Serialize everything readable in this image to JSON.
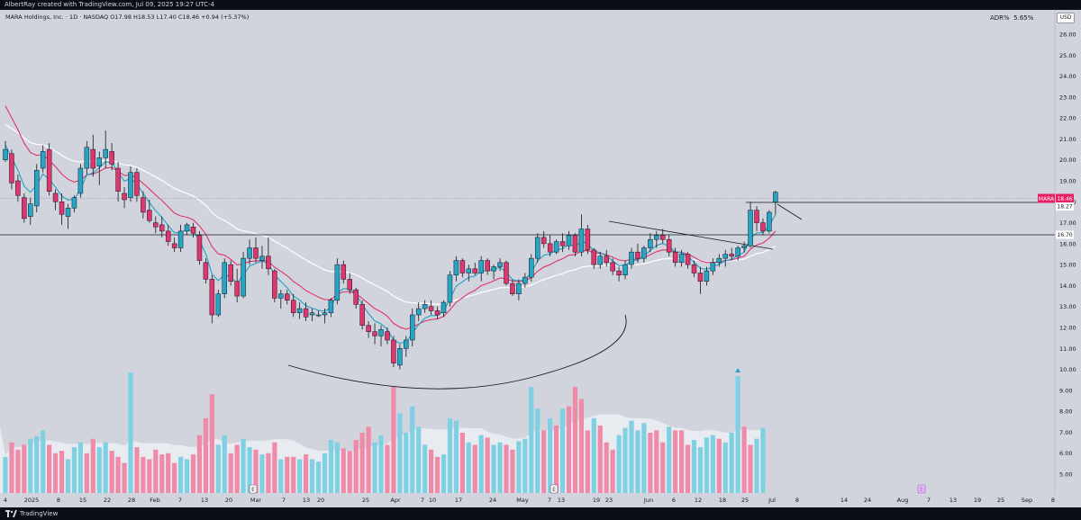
{
  "header": {
    "creator_line": "AlbertRay created with TradingView.com, Jul 09, 2025 19:27 UTC-4",
    "symbol_line": "MARA Holdings, Inc. · 1D · NASDAQ  O17.98  H18.53  L17.40  C18.46  +0.94 (+5.37%)",
    "adr_label": "ADR%",
    "adr_value": "5.65%",
    "currency": "USD"
  },
  "footer": {
    "brand": "TradingView"
  },
  "chart_data": {
    "type": "candlestick",
    "symbol": "MARA",
    "timeframe": "1D",
    "y_axis": {
      "range": [
        4.4,
        27.8
      ],
      "ticks": [
        "5.00",
        "6.00",
        "7.00",
        "8.00",
        "9.00",
        "10.00",
        "11.00",
        "12.00",
        "13.00",
        "14.00",
        "15.00",
        "16.00",
        "17.00",
        "18.00",
        "19.00",
        "20.00",
        "21.00",
        "22.00",
        "23.00",
        "24.00",
        "25.00",
        "26.00"
      ]
    },
    "x_axis": {
      "ticks": [
        "4",
        "2025",
        "8",
        "15",
        "22",
        "28",
        "Feb",
        "7",
        "13",
        "20",
        "Mar",
        "7",
        "13",
        "20",
        "25",
        "Apr",
        "7",
        "10",
        "17",
        "24",
        "May",
        "7",
        "13",
        "19",
        "23",
        "Jun",
        "6",
        "12",
        "18",
        "25",
        "Jul",
        "8",
        "14",
        "24",
        "Aug",
        "7",
        "13",
        "19",
        "25",
        "Sep",
        "8"
      ]
    },
    "price_labels": {
      "last": {
        "symbol": "MARA",
        "value": "18.46",
        "color": "#e91e63"
      },
      "level1": {
        "value": "18.27"
      },
      "level2": {
        "value": "16.70"
      }
    },
    "event_markers": [
      "E",
      "E",
      "E"
    ],
    "colors": {
      "up": "#26a6c4",
      "down": "#e0356f",
      "volume_up": "#7fd0e3",
      "volume_down": "#f08aa9",
      "ema_fast": "#1fa0c4",
      "ema_mid": "#e0356f",
      "ema_slow": "#ffffff"
    },
    "candles": [
      [
        20.0,
        20.9,
        19.9,
        20.5
      ],
      [
        20.3,
        20.5,
        18.6,
        18.9
      ],
      [
        19.0,
        19.3,
        18.0,
        18.3
      ],
      [
        18.2,
        18.4,
        17.0,
        17.2
      ],
      [
        17.3,
        18.2,
        16.9,
        17.9
      ],
      [
        17.8,
        19.8,
        17.5,
        19.5
      ],
      [
        19.6,
        20.7,
        19.4,
        20.4
      ],
      [
        20.5,
        20.8,
        18.3,
        18.5
      ],
      [
        18.4,
        18.6,
        17.6,
        18.0
      ],
      [
        18.0,
        18.4,
        16.9,
        17.4
      ],
      [
        17.3,
        17.9,
        16.7,
        17.7
      ],
      [
        17.7,
        18.3,
        17.5,
        18.2
      ],
      [
        18.4,
        19.8,
        18.2,
        19.6
      ],
      [
        19.6,
        20.9,
        19.3,
        20.6
      ],
      [
        20.5,
        21.2,
        19.2,
        19.6
      ],
      [
        19.7,
        20.4,
        18.8,
        20.1
      ],
      [
        20.1,
        21.4,
        19.6,
        20.5
      ],
      [
        20.4,
        20.8,
        19.5,
        19.8
      ],
      [
        19.6,
        19.9,
        18.0,
        18.5
      ],
      [
        18.4,
        18.7,
        17.7,
        18.1
      ],
      [
        18.2,
        19.7,
        18.0,
        19.4
      ],
      [
        19.4,
        19.6,
        18.0,
        18.3
      ],
      [
        18.2,
        18.5,
        17.2,
        17.5
      ],
      [
        17.6,
        18.1,
        17.0,
        17.1
      ],
      [
        17.0,
        17.3,
        16.5,
        16.8
      ],
      [
        16.9,
        17.3,
        16.3,
        16.6
      ],
      [
        16.6,
        16.9,
        15.9,
        16.1
      ],
      [
        16.0,
        16.3,
        15.6,
        15.8
      ],
      [
        15.8,
        16.9,
        15.6,
        16.6
      ],
      [
        16.6,
        17.0,
        16.4,
        16.9
      ],
      [
        16.8,
        17.0,
        16.3,
        16.5
      ],
      [
        16.4,
        16.6,
        15.0,
        15.2
      ],
      [
        15.1,
        15.3,
        14.1,
        14.3
      ],
      [
        14.3,
        14.5,
        12.2,
        12.6
      ],
      [
        12.6,
        13.8,
        12.5,
        13.6
      ],
      [
        13.6,
        15.3,
        13.4,
        15.1
      ],
      [
        15.0,
        15.2,
        14.0,
        14.2
      ],
      [
        14.2,
        14.8,
        13.2,
        13.5
      ],
      [
        13.5,
        15.6,
        13.4,
        15.3
      ],
      [
        15.3,
        16.2,
        15.0,
        15.8
      ],
      [
        15.8,
        16.3,
        15.1,
        15.3
      ],
      [
        15.2,
        15.9,
        14.8,
        15.4
      ],
      [
        15.4,
        16.3,
        14.5,
        14.8
      ],
      [
        14.7,
        14.8,
        13.2,
        13.4
      ],
      [
        13.4,
        13.8,
        12.9,
        13.6
      ],
      [
        13.6,
        13.8,
        13.1,
        13.3
      ],
      [
        13.3,
        13.6,
        12.5,
        12.7
      ],
      [
        12.7,
        13.2,
        12.4,
        12.9
      ],
      [
        12.9,
        13.2,
        12.3,
        12.5
      ],
      [
        12.6,
        12.9,
        12.3,
        12.7
      ],
      [
        12.6,
        12.8,
        12.5,
        12.6
      ],
      [
        12.6,
        12.9,
        12.2,
        12.7
      ],
      [
        12.7,
        13.4,
        12.5,
        13.3
      ],
      [
        13.3,
        15.3,
        13.1,
        15.0
      ],
      [
        15.0,
        15.2,
        14.1,
        14.3
      ],
      [
        14.3,
        14.6,
        13.6,
        13.8
      ],
      [
        13.8,
        13.9,
        12.9,
        13.1
      ],
      [
        13.1,
        13.3,
        11.9,
        12.1
      ],
      [
        12.1,
        12.3,
        11.5,
        11.8
      ],
      [
        11.8,
        12.2,
        11.2,
        11.6
      ],
      [
        11.6,
        12.1,
        11.1,
        11.9
      ],
      [
        11.8,
        12.0,
        11.2,
        11.4
      ],
      [
        11.4,
        11.6,
        10.1,
        10.3
      ],
      [
        10.2,
        11.2,
        10.0,
        11.0
      ],
      [
        11.0,
        11.6,
        10.6,
        11.4
      ],
      [
        11.4,
        12.9,
        11.1,
        12.6
      ],
      [
        12.6,
        13.2,
        12.3,
        12.9
      ],
      [
        12.9,
        13.3,
        12.7,
        13.1
      ],
      [
        13.0,
        13.3,
        12.6,
        12.8
      ],
      [
        12.8,
        13.0,
        12.4,
        12.6
      ],
      [
        12.7,
        13.3,
        12.5,
        13.2
      ],
      [
        13.2,
        14.7,
        13.0,
        14.5
      ],
      [
        14.5,
        15.4,
        14.2,
        15.2
      ],
      [
        15.2,
        15.3,
        14.4,
        14.6
      ],
      [
        14.6,
        15.0,
        14.2,
        14.8
      ],
      [
        14.8,
        15.1,
        14.5,
        14.6
      ],
      [
        14.6,
        15.4,
        14.2,
        15.2
      ],
      [
        15.2,
        15.3,
        14.5,
        14.7
      ],
      [
        14.7,
        15.0,
        14.3,
        14.9
      ],
      [
        14.9,
        15.3,
        14.7,
        15.1
      ],
      [
        15.1,
        15.2,
        14.0,
        14.1
      ],
      [
        14.1,
        14.3,
        13.5,
        13.6
      ],
      [
        13.6,
        14.3,
        13.3,
        14.1
      ],
      [
        14.1,
        14.6,
        13.9,
        14.4
      ],
      [
        14.4,
        15.5,
        14.2,
        15.3
      ],
      [
        15.3,
        16.5,
        15.1,
        16.3
      ],
      [
        16.3,
        16.6,
        15.8,
        16.0
      ],
      [
        16.0,
        16.4,
        15.4,
        15.6
      ],
      [
        15.6,
        16.2,
        15.5,
        16.1
      ],
      [
        16.1,
        16.5,
        15.6,
        15.9
      ],
      [
        15.9,
        16.6,
        15.7,
        16.4
      ],
      [
        16.4,
        16.5,
        15.4,
        15.6
      ],
      [
        15.6,
        17.4,
        15.4,
        16.7
      ],
      [
        16.7,
        16.9,
        15.5,
        15.7
      ],
      [
        15.7,
        15.8,
        14.8,
        15.0
      ],
      [
        15.0,
        15.6,
        14.8,
        15.4
      ],
      [
        15.4,
        15.7,
        14.9,
        15.1
      ],
      [
        15.1,
        15.3,
        14.5,
        14.7
      ],
      [
        14.7,
        14.9,
        14.2,
        14.5
      ],
      [
        14.5,
        15.2,
        14.3,
        15.0
      ],
      [
        15.0,
        15.8,
        14.8,
        15.6
      ],
      [
        15.6,
        16.0,
        15.1,
        15.3
      ],
      [
        15.3,
        15.9,
        15.1,
        15.8
      ],
      [
        15.8,
        16.5,
        15.6,
        16.2
      ],
      [
        16.2,
        16.6,
        15.8,
        16.4
      ],
      [
        16.4,
        16.7,
        16.0,
        16.2
      ],
      [
        16.2,
        16.4,
        15.4,
        15.6
      ],
      [
        15.6,
        15.8,
        14.9,
        15.1
      ],
      [
        15.1,
        15.7,
        14.9,
        15.5
      ],
      [
        15.5,
        15.6,
        14.8,
        15.0
      ],
      [
        15.0,
        15.2,
        14.4,
        14.6
      ],
      [
        14.6,
        14.9,
        13.6,
        14.2
      ],
      [
        14.2,
        14.9,
        14.0,
        14.7
      ],
      [
        14.7,
        15.3,
        14.5,
        15.1
      ],
      [
        15.1,
        15.5,
        14.9,
        15.3
      ],
      [
        15.3,
        15.7,
        14.9,
        15.5
      ],
      [
        15.5,
        15.8,
        15.2,
        15.4
      ],
      [
        15.4,
        15.9,
        15.2,
        15.8
      ],
      [
        15.8,
        16.1,
        15.6,
        15.9
      ],
      [
        15.9,
        18.0,
        15.8,
        17.6
      ],
      [
        17.6,
        17.8,
        16.6,
        17.0
      ],
      [
        17.0,
        17.2,
        16.4,
        16.6
      ],
      [
        16.6,
        17.6,
        16.5,
        17.5
      ],
      [
        17.98,
        18.53,
        17.4,
        18.46
      ]
    ],
    "volume_scale": [
      0,
      1
    ],
    "volumes": [
      [
        0.3,
        true
      ],
      [
        0.42,
        false
      ],
      [
        0.36,
        false
      ],
      [
        0.4,
        false
      ],
      [
        0.45,
        true
      ],
      [
        0.47,
        true
      ],
      [
        0.52,
        true
      ],
      [
        0.4,
        false
      ],
      [
        0.33,
        false
      ],
      [
        0.35,
        false
      ],
      [
        0.28,
        true
      ],
      [
        0.38,
        true
      ],
      [
        0.42,
        true
      ],
      [
        0.33,
        false
      ],
      [
        0.45,
        false
      ],
      [
        0.38,
        true
      ],
      [
        0.42,
        true
      ],
      [
        0.35,
        false
      ],
      [
        0.3,
        false
      ],
      [
        0.25,
        false
      ],
      [
        1.0,
        true
      ],
      [
        0.38,
        false
      ],
      [
        0.3,
        false
      ],
      [
        0.28,
        false
      ],
      [
        0.36,
        false
      ],
      [
        0.32,
        false
      ],
      [
        0.33,
        false
      ],
      [
        0.25,
        false
      ],
      [
        0.3,
        true
      ],
      [
        0.28,
        true
      ],
      [
        0.32,
        false
      ],
      [
        0.48,
        false
      ],
      [
        0.62,
        false
      ],
      [
        0.82,
        false
      ],
      [
        0.4,
        true
      ],
      [
        0.48,
        true
      ],
      [
        0.33,
        false
      ],
      [
        0.4,
        false
      ],
      [
        0.45,
        true
      ],
      [
        0.38,
        true
      ],
      [
        0.36,
        false
      ],
      [
        0.32,
        true
      ],
      [
        0.33,
        false
      ],
      [
        0.42,
        false
      ],
      [
        0.28,
        true
      ],
      [
        0.3,
        false
      ],
      [
        0.3,
        false
      ],
      [
        0.28,
        true
      ],
      [
        0.32,
        false
      ],
      [
        0.28,
        true
      ],
      [
        0.26,
        true
      ],
      [
        0.33,
        true
      ],
      [
        0.44,
        true
      ],
      [
        0.42,
        true
      ],
      [
        0.37,
        false
      ],
      [
        0.35,
        false
      ],
      [
        0.44,
        false
      ],
      [
        0.5,
        false
      ],
      [
        0.55,
        false
      ],
      [
        0.42,
        true
      ],
      [
        0.48,
        true
      ],
      [
        0.4,
        false
      ],
      [
        0.88,
        false
      ],
      [
        0.66,
        true
      ],
      [
        0.5,
        true
      ],
      [
        0.72,
        true
      ],
      [
        0.55,
        true
      ],
      [
        0.4,
        true
      ],
      [
        0.36,
        false
      ],
      [
        0.3,
        false
      ],
      [
        0.32,
        true
      ],
      [
        0.62,
        true
      ],
      [
        0.6,
        true
      ],
      [
        0.5,
        false
      ],
      [
        0.42,
        true
      ],
      [
        0.4,
        false
      ],
      [
        0.48,
        true
      ],
      [
        0.46,
        false
      ],
      [
        0.4,
        true
      ],
      [
        0.42,
        true
      ],
      [
        0.4,
        false
      ],
      [
        0.36,
        false
      ],
      [
        0.43,
        true
      ],
      [
        0.45,
        true
      ],
      [
        0.88,
        true
      ],
      [
        0.7,
        true
      ],
      [
        0.52,
        false
      ],
      [
        0.62,
        true
      ],
      [
        0.56,
        false
      ],
      [
        0.7,
        true
      ],
      [
        0.72,
        false
      ],
      [
        0.88,
        false
      ],
      [
        0.78,
        false
      ],
      [
        0.52,
        false
      ],
      [
        0.62,
        true
      ],
      [
        0.56,
        false
      ],
      [
        0.42,
        false
      ],
      [
        0.36,
        false
      ],
      [
        0.48,
        true
      ],
      [
        0.54,
        true
      ],
      [
        0.6,
        true
      ],
      [
        0.52,
        true
      ],
      [
        0.58,
        true
      ],
      [
        0.5,
        false
      ],
      [
        0.52,
        false
      ],
      [
        0.42,
        false
      ],
      [
        0.55,
        true
      ],
      [
        0.52,
        false
      ],
      [
        0.52,
        false
      ],
      [
        0.4,
        false
      ],
      [
        0.44,
        true
      ],
      [
        0.38,
        true
      ],
      [
        0.46,
        true
      ],
      [
        0.48,
        true
      ],
      [
        0.45,
        false
      ],
      [
        0.42,
        true
      ],
      [
        0.5,
        true
      ],
      [
        0.97,
        true
      ],
      [
        0.55,
        false
      ],
      [
        0.4,
        false
      ],
      [
        0.45,
        true
      ],
      [
        0.54,
        true
      ]
    ]
  }
}
